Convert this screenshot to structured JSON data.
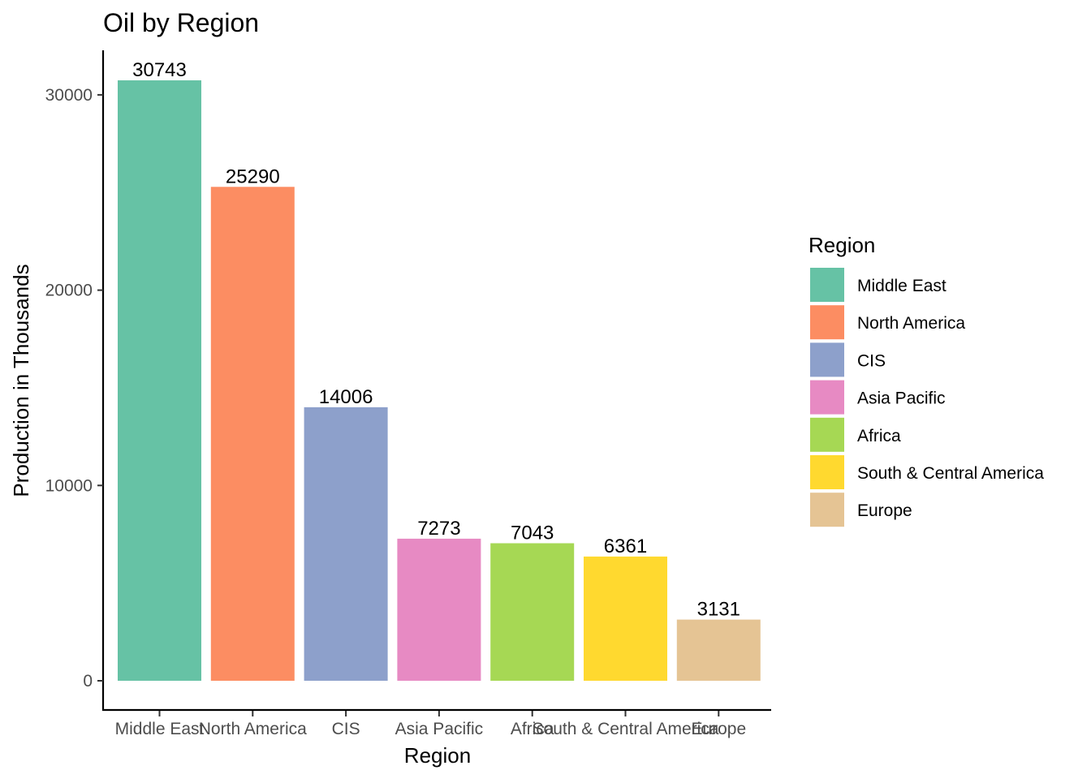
{
  "chart_data": {
    "type": "bar",
    "title": "Oil by Region",
    "xlabel": "Region",
    "ylabel": "Production in Thousands",
    "categories": [
      "Middle East",
      "North America",
      "CIS",
      "Asia Pacific",
      "Africa",
      "South & Central America",
      "Europe"
    ],
    "values": [
      30743,
      25290,
      14006,
      7273,
      7043,
      6361,
      3131
    ],
    "colors": [
      "#66C2A5",
      "#FC8D62",
      "#8DA0CB",
      "#E78AC3",
      "#A6D854",
      "#FFD92F",
      "#E5C494"
    ],
    "ylim": [
      0,
      30743
    ],
    "yticks": [
      0,
      10000,
      20000,
      30000
    ],
    "grid": false,
    "legend": {
      "title": "Region",
      "position": "right",
      "entries": [
        "Middle East",
        "North America",
        "CIS",
        "Asia Pacific",
        "Africa",
        "South & Central America",
        "Europe"
      ]
    }
  }
}
